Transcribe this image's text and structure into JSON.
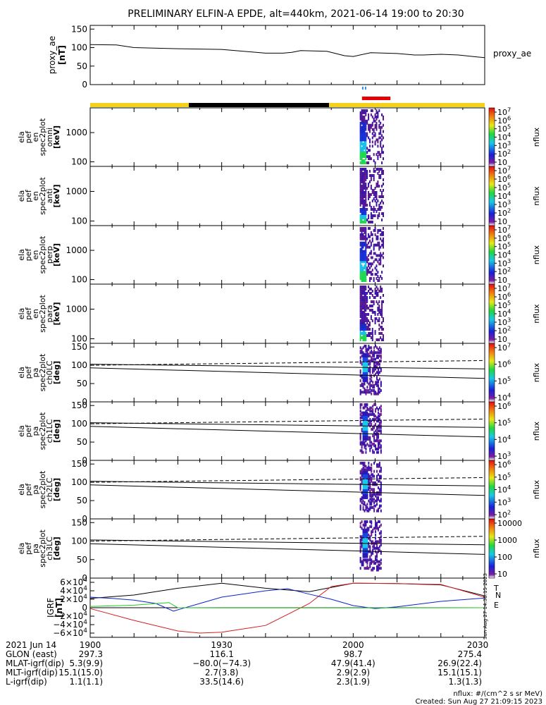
{
  "title": "PRELIMINARY ELFIN-A EPDE, alt=440km, 2021-06-14 19:00 to 20:30",
  "colors": {
    "bar_yellow": "#f2d21a",
    "bar_black": "#000000",
    "marker_red": "#e60000",
    "marker_blue": "#2a8cff",
    "grf_black": "#000000",
    "grf_blue": "#0a24c8",
    "grf_red": "#d42020",
    "grf_green": "#28c828",
    "data_line": "#000000"
  },
  "chart_data": [
    {
      "type": "line",
      "name": "proxy_ae",
      "ylabel": "proxy_ae [nT]",
      "legend_label": "proxy_ae",
      "ylim": [
        0,
        160
      ],
      "yticks": [
        "0",
        "50",
        "100",
        "150"
      ],
      "x": [
        0,
        6,
        10,
        20,
        30,
        40,
        44,
        46,
        48,
        54,
        58,
        60,
        64,
        70,
        74,
        76,
        80,
        84,
        88,
        90
      ],
      "y": [
        108,
        107,
        100,
        97,
        95,
        85,
        85,
        87,
        92,
        90,
        78,
        76,
        86,
        84,
        80,
        80,
        82,
        80,
        75,
        73
      ],
      "markers": {
        "blue_ticks_x": 62.5,
        "red_bar_x": [
          62,
          68.5
        ]
      }
    },
    {
      "type": "heatmap",
      "ylabel": [
        "ela",
        "pef",
        "en",
        "spec2plot",
        "omni",
        "[keV]"
      ],
      "yscale": "log",
      "yticks": [
        "100",
        "1000"
      ],
      "colorbar": {
        "label": "nflux",
        "ticks": [
          "10^7",
          "10^6",
          "10^5",
          "10^4",
          "10^3",
          "10^2",
          "10"
        ]
      }
    },
    {
      "type": "heatmap",
      "ylabel": [
        "ela",
        "pef",
        "en",
        "spec2plot",
        "anti",
        "[keV]"
      ],
      "yscale": "log",
      "yticks": [
        "100",
        "1000"
      ],
      "colorbar": {
        "label": "nflux",
        "ticks": [
          "10^7",
          "10^6",
          "10^5",
          "10^4",
          "10^3",
          "10^2",
          "10"
        ]
      }
    },
    {
      "type": "heatmap",
      "ylabel": [
        "ela",
        "pef",
        "en",
        "spec2plot",
        "perp",
        "[keV]"
      ],
      "yscale": "log",
      "yticks": [
        "100",
        "1000"
      ],
      "colorbar": {
        "label": "nflux",
        "ticks": [
          "10^7",
          "10^6",
          "10^5",
          "10^4",
          "10^3",
          "10^2",
          "10"
        ]
      }
    },
    {
      "type": "heatmap",
      "ylabel": [
        "ela",
        "pef",
        "en",
        "spec2plot",
        "para",
        "[keV]"
      ],
      "yscale": "log",
      "yticks": [
        "100",
        "1000"
      ],
      "colorbar": {
        "label": "nflux",
        "ticks": [
          "10^7",
          "10^6",
          "10^5",
          "10^4",
          "10^3",
          "10^2",
          "10"
        ]
      }
    },
    {
      "type": "heatmap",
      "ylabel": [
        "ela",
        "pef",
        "pa",
        "spec2plot",
        "ch0LC",
        "[deg]"
      ],
      "ylim": [
        0,
        160
      ],
      "yticks": [
        "0",
        "50",
        "100",
        "150"
      ],
      "colorbar": {
        "label": "nflux",
        "ticks": [
          "10^7",
          "10^6",
          "10^5",
          "10^4"
        ]
      },
      "lines": {
        "solid_upper": [
          [
            0,
            103
          ],
          [
            90,
            90
          ]
        ],
        "solid_lower": [
          [
            0,
            93
          ],
          [
            90,
            64
          ]
        ],
        "dashed": [
          [
            0,
            100
          ],
          [
            90,
            113
          ]
        ]
      }
    },
    {
      "type": "heatmap",
      "ylabel": [
        "ela",
        "pef",
        "pa",
        "spec2plot",
        "ch1LC",
        "[deg]"
      ],
      "ylim": [
        0,
        160
      ],
      "yticks": [
        "0",
        "50",
        "100",
        "150"
      ],
      "colorbar": {
        "label": "nflux",
        "ticks": [
          "10^6",
          "10^5",
          "10^4",
          "10^3"
        ]
      },
      "lines": {
        "solid_upper": [
          [
            0,
            103
          ],
          [
            90,
            90
          ]
        ],
        "solid_lower": [
          [
            0,
            93
          ],
          [
            90,
            64
          ]
        ],
        "dashed": [
          [
            0,
            100
          ],
          [
            90,
            113
          ]
        ]
      }
    },
    {
      "type": "heatmap",
      "ylabel": [
        "ela",
        "pef",
        "pa",
        "spec2plot",
        "ch2LC",
        "[deg]"
      ],
      "ylim": [
        0,
        160
      ],
      "yticks": [
        "0",
        "50",
        "100",
        "150"
      ],
      "colorbar": {
        "label": "nflux",
        "ticks": [
          "10^6",
          "10^5",
          "10^4",
          "10^3",
          "10^2"
        ]
      },
      "lines": {
        "solid_upper": [
          [
            0,
            103
          ],
          [
            90,
            90
          ]
        ],
        "solid_lower": [
          [
            0,
            93
          ],
          [
            90,
            64
          ]
        ],
        "dashed": [
          [
            0,
            100
          ],
          [
            90,
            113
          ]
        ]
      }
    },
    {
      "type": "heatmap",
      "ylabel": [
        "ela",
        "pef",
        "pa",
        "spec2plot",
        "ch3LC",
        "[deg]"
      ],
      "ylim": [
        0,
        160
      ],
      "yticks": [
        "0",
        "50",
        "100",
        "150"
      ],
      "colorbar": {
        "label": "nflux",
        "ticks": [
          "10000",
          "1000",
          "100",
          "10"
        ]
      },
      "lines": {
        "solid_upper": [
          [
            0,
            103
          ],
          [
            90,
            90
          ]
        ],
        "solid_lower": [
          [
            0,
            93
          ],
          [
            90,
            64
          ]
        ],
        "dashed": [
          [
            0,
            100
          ],
          [
            90,
            113
          ]
        ]
      }
    },
    {
      "type": "line",
      "ylabel": [
        "IGRF",
        "[nT]"
      ],
      "ylim": [
        -70000,
        70000
      ],
      "yticks": [
        "6×10^4",
        "4×10^4",
        "2×10^4",
        "0",
        "−2×10^4",
        "−4×10^4",
        "−6×10^4"
      ],
      "series": [
        {
          "name": "T",
          "color": "black",
          "x": [
            0,
            10,
            20,
            30,
            40,
            50,
            60,
            70,
            80,
            90
          ],
          "y": [
            22000,
            30000,
            46000,
            58000,
            46000,
            38000,
            58000,
            57000,
            54000,
            28000
          ]
        },
        {
          "name": "N",
          "color": "red",
          "x": [
            0,
            10,
            20,
            25,
            30,
            40,
            50,
            55,
            60,
            70,
            80,
            90
          ],
          "y": [
            -2000,
            -30000,
            -55000,
            -60000,
            -58000,
            -42000,
            10000,
            50000,
            58000,
            57000,
            55000,
            25000
          ]
        },
        {
          "name": "blue",
          "color": "blue",
          "x": [
            0,
            5,
            10,
            15,
            19,
            20,
            25,
            30,
            40,
            45,
            50,
            55,
            60,
            65,
            70,
            80,
            90
          ],
          "y": [
            25000,
            22000,
            18000,
            10000,
            -8000,
            -5000,
            10000,
            25000,
            40000,
            45000,
            32000,
            20000,
            5000,
            -2000,
            2000,
            15000,
            23000
          ]
        },
        {
          "name": "E",
          "color": "green",
          "x": [
            0,
            10,
            18,
            20,
            30,
            60,
            90
          ],
          "y": [
            3000,
            6000,
            12000,
            0,
            -500,
            -500,
            0
          ]
        }
      ]
    }
  ],
  "time_axis": {
    "ticks": [
      "1900",
      "1930",
      "2000",
      "2030"
    ],
    "rows": [
      {
        "label": "2021 Jun 14",
        "values": [
          "1900",
          "1930",
          "2000",
          "2030"
        ]
      },
      {
        "label": "GLON (east)",
        "values": [
          "297.3",
          "116.1",
          "98.7",
          "275.4"
        ]
      },
      {
        "label": "MLAT-igrf(dip)",
        "values": [
          "5.3(9.9)",
          "−80.0(−74.3)",
          "47.9(41.4)",
          "26.9(22.4)"
        ]
      },
      {
        "label": "MLT-igrf(dip)",
        "values": [
          "15.1(15.0)",
          "2.7(3.8)",
          "2.9(2.9)",
          "15.1(15.1)"
        ]
      },
      {
        "label": "L-igrf(dip)",
        "values": [
          "1.1(1.1)",
          "33.5(14.6)",
          "2.3(1.9)",
          "1.3(1.3)"
        ]
      }
    ]
  },
  "footer": {
    "units": "nflux: #/(cm^2 s sr MeV)",
    "created": "Created: Sun Aug 27 21:09:15 2023",
    "side_stamp": "Sun Aug 27 14:38:15 2023"
  }
}
